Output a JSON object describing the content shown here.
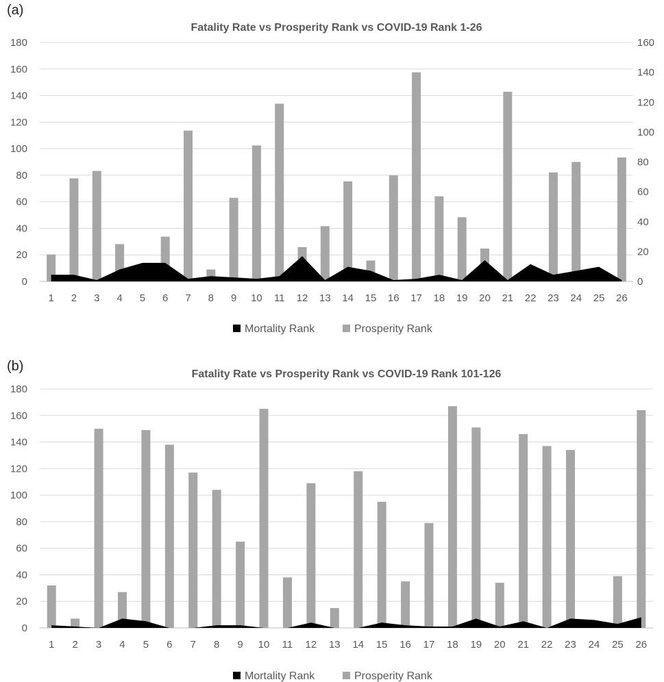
{
  "chart_data": [
    {
      "panel_label": "(a)",
      "type": "bar",
      "title": "Fatality Rate vs Prosperity Rank vs COVID-19 Rank 1-26",
      "categories": [
        "1",
        "2",
        "3",
        "4",
        "5",
        "6",
        "7",
        "8",
        "9",
        "10",
        "11",
        "12",
        "13",
        "14",
        "15",
        "16",
        "17",
        "18",
        "19",
        "20",
        "21",
        "22",
        "23",
        "24",
        "25",
        "26"
      ],
      "y_left": {
        "min": 0,
        "max": 180,
        "step": 20,
        "ticks": [
          "0",
          "20",
          "40",
          "60",
          "80",
          "100",
          "120",
          "140",
          "160",
          "180"
        ]
      },
      "y_right": {
        "min": 0,
        "max": 160,
        "step": 20,
        "ticks": [
          "0",
          "20",
          "40",
          "60",
          "80",
          "100",
          "120",
          "140",
          "160"
        ]
      },
      "grid": true,
      "legend_position": "bottom",
      "series": [
        {
          "name": "Mortality Rank",
          "chart_type": "area",
          "axis": "left",
          "color": "#000000",
          "values": [
            5,
            5,
            1,
            9,
            14,
            14,
            2,
            4,
            3,
            2,
            4,
            19,
            1,
            11,
            8,
            1,
            2,
            5,
            1,
            16,
            1,
            13,
            5,
            8,
            11,
            1
          ]
        },
        {
          "name": "Prosperity Rank",
          "chart_type": "bar",
          "axis": "right",
          "color": "#a6a6a6",
          "values": [
            18,
            69,
            74,
            25,
            11,
            30,
            101,
            8,
            56,
            91,
            119,
            23,
            37,
            67,
            14,
            71,
            140,
            57,
            43,
            22,
            127,
            6,
            73,
            80,
            4,
            83
          ]
        }
      ]
    },
    {
      "panel_label": "(b)",
      "type": "bar",
      "title": "Fatality Rate vs Prosperity Rank vs COVID-19 Rank 101-126",
      "categories": [
        "1",
        "2",
        "3",
        "4",
        "5",
        "6",
        "7",
        "8",
        "9",
        "10",
        "11",
        "12",
        "13",
        "14",
        "15",
        "16",
        "17",
        "18",
        "19",
        "20",
        "21",
        "22",
        "23",
        "24",
        "25",
        "26"
      ],
      "y_left": {
        "min": 0,
        "max": 180,
        "step": 20,
        "ticks": [
          "0",
          "20",
          "40",
          "60",
          "80",
          "100",
          "120",
          "140",
          "160",
          "180"
        ]
      },
      "grid": true,
      "legend_position": "bottom",
      "series": [
        {
          "name": "Mortality Rank",
          "chart_type": "area",
          "axis": "left",
          "color": "#000000",
          "values": [
            2,
            1,
            0,
            7,
            5,
            0,
            0,
            2,
            2,
            0,
            0,
            4,
            0,
            0,
            4,
            2,
            1,
            1,
            7,
            1,
            5,
            0,
            7,
            6,
            3,
            8
          ]
        },
        {
          "name": "Prosperity Rank",
          "chart_type": "bar",
          "axis": "left",
          "color": "#a6a6a6",
          "values": [
            32,
            7,
            150,
            27,
            149,
            138,
            117,
            104,
            65,
            165,
            38,
            109,
            15,
            118,
            95,
            35,
            79,
            167,
            151,
            34,
            146,
            137,
            134,
            0,
            39,
            164
          ]
        }
      ]
    }
  ]
}
